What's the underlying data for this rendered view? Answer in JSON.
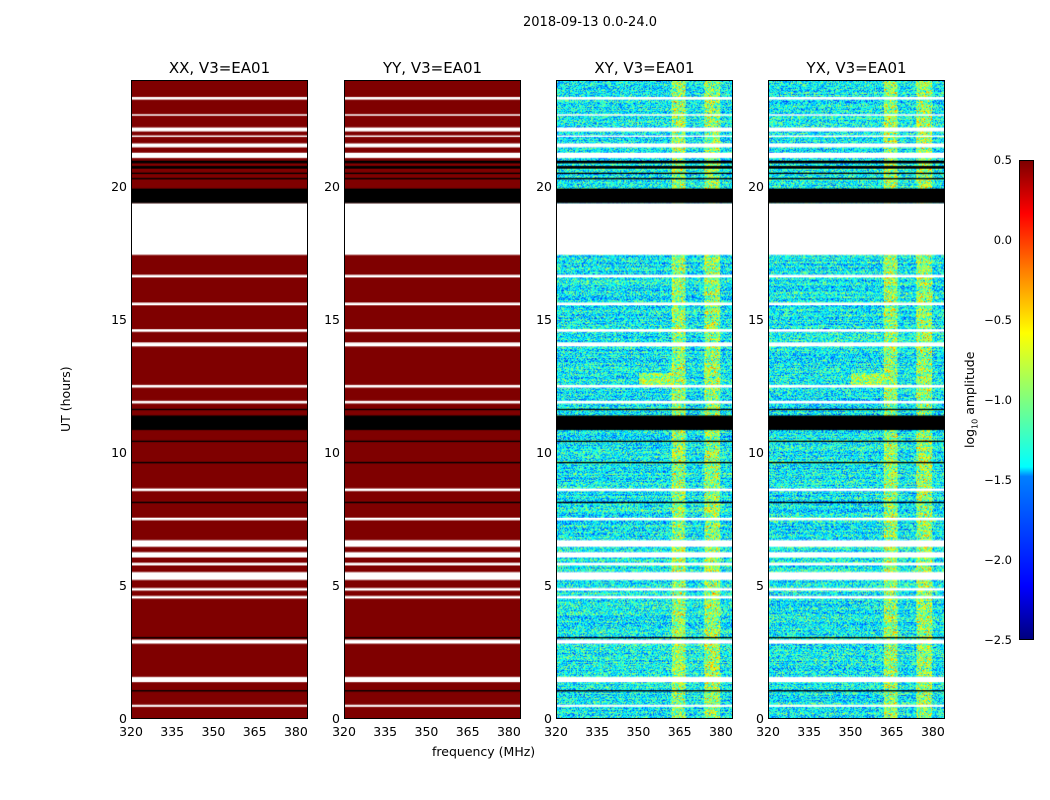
{
  "chart_data": {
    "type": "heatmap",
    "title": "2018-09-13 0.0-24.0",
    "xlabel": "frequency (MHz)",
    "ylabel": "UT (hours)",
    "xlim": [
      320,
      384.4
    ],
    "ylim": [
      0,
      24
    ],
    "xticks": [
      "320",
      "335",
      "350",
      "365",
      "380"
    ],
    "xtick_values": [
      320,
      335,
      350,
      365,
      380
    ],
    "yticks": [
      "0",
      "5",
      "10",
      "15",
      "20"
    ],
    "ytick_values": [
      0,
      5,
      10,
      15,
      20
    ],
    "panels": [
      {
        "title": "XX, V3=EA01",
        "kind": "saturated"
      },
      {
        "title": "YY, V3=EA01",
        "kind": "saturated"
      },
      {
        "title": "XY, V3=EA01",
        "kind": "noise"
      },
      {
        "title": "YX, V3=EA01",
        "kind": "noise"
      }
    ],
    "flagged_white_hours": [
      [
        23.3,
        23.4
      ],
      [
        22.7,
        22.75
      ],
      [
        22.1,
        22.25
      ],
      [
        21.9,
        21.95
      ],
      [
        21.5,
        21.65
      ],
      [
        21.1,
        21.3
      ],
      [
        17.45,
        19.4
      ],
      [
        16.6,
        16.7
      ],
      [
        15.55,
        15.65
      ],
      [
        14.55,
        14.65
      ],
      [
        14.0,
        14.15
      ],
      [
        12.45,
        12.55
      ],
      [
        11.85,
        11.95
      ],
      [
        8.55,
        8.65
      ],
      [
        7.45,
        7.55
      ],
      [
        6.45,
        6.7
      ],
      [
        6.05,
        6.25
      ],
      [
        5.75,
        5.85
      ],
      [
        5.2,
        5.5
      ],
      [
        4.8,
        4.9
      ],
      [
        4.5,
        4.6
      ],
      [
        2.8,
        2.95
      ],
      [
        1.35,
        1.55
      ],
      [
        0.42,
        0.5
      ]
    ],
    "flagged_black_hours": [
      [
        19.4,
        19.95
      ],
      [
        20.3,
        20.35
      ],
      [
        20.5,
        20.55
      ],
      [
        20.7,
        20.8
      ],
      [
        20.9,
        21.0
      ],
      [
        10.85,
        11.4
      ],
      [
        11.6,
        11.65
      ],
      [
        10.4,
        10.45
      ],
      [
        9.6,
        9.65
      ],
      [
        8.1,
        8.15
      ],
      [
        3.0,
        3.05
      ],
      [
        1.0,
        1.05
      ]
    ],
    "bright_bands_mhz": [
      [
        362,
        367
      ],
      [
        374,
        380
      ]
    ],
    "colorbar": {
      "label": "log10 amplitude",
      "range": [
        -2.5,
        0.5
      ],
      "ticks": [
        "0.5",
        "0.0",
        "−0.5",
        "−1.0",
        "−1.5",
        "−2.0",
        "−2.5"
      ],
      "tick_values": [
        0.5,
        0,
        -0.5,
        -1,
        -1.5,
        -2,
        -2.5
      ],
      "colormap": "jet"
    },
    "saturated_color": "#7f0000"
  }
}
